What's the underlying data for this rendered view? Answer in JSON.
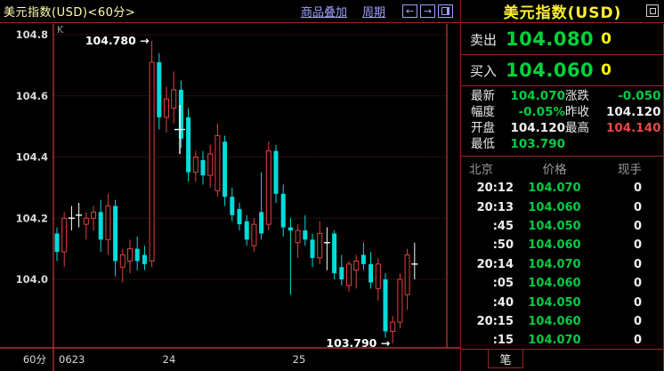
{
  "topbar": {
    "title": "美元指数(USD)<60分>",
    "overlay_label": "商品叠加",
    "period_label": "周期",
    "icons": [
      "left-arrow",
      "right-arrow",
      "split-window"
    ]
  },
  "quote_panel": {
    "title": "美元指数(USD)",
    "sell_label": "卖出",
    "sell_price": "104.080",
    "sell_vol": "0",
    "buy_label": "买入",
    "buy_price": "104.060",
    "buy_vol": "0",
    "stats": [
      {
        "label": "最新",
        "value": "104.070",
        "color": "green"
      },
      {
        "label": "涨跌",
        "value": "-0.050",
        "color": "green"
      },
      {
        "label": "幅度",
        "value": "-0.05%",
        "color": "green"
      },
      {
        "label": "昨收",
        "value": "104.120",
        "color": "white"
      },
      {
        "label": "开盘",
        "value": "104.120",
        "color": "white"
      },
      {
        "label": "最高",
        "value": "104.140",
        "color": "red"
      },
      {
        "label": "最低",
        "value": "103.790",
        "color": "green"
      }
    ],
    "colors": {
      "green": "#00cc41",
      "red": "#e84848",
      "white": "#f0f0f0"
    },
    "table": {
      "headers": [
        "北京",
        "价格",
        "现手"
      ],
      "rows": [
        [
          "20:12",
          "104.070",
          "0"
        ],
        [
          "20:13",
          "104.060",
          "0"
        ],
        [
          ":45",
          "104.050",
          "0"
        ],
        [
          ":50",
          "104.060",
          "0"
        ],
        [
          "20:14",
          "104.070",
          "0"
        ],
        [
          ":05",
          "104.060",
          "0"
        ],
        [
          ":40",
          "104.050",
          "0"
        ],
        [
          "20:15",
          "104.060",
          "0"
        ],
        [
          ":15",
          "104.070",
          "0"
        ]
      ]
    },
    "tab_label": "笔"
  },
  "chart_data": {
    "type": "candlestick",
    "title": "美元指数(USD)<60分>",
    "corner_label": "K",
    "interval_label": "60分",
    "period": "60-minute",
    "y_ticks": [
      104.8,
      104.6,
      104.4,
      104.2,
      104.0
    ],
    "ylim": [
      103.75,
      104.83
    ],
    "x_tick_labels": [
      {
        "label": "0623",
        "x": 66,
        "align": "start"
      },
      {
        "label": "24",
        "x": 190,
        "align": "middle"
      },
      {
        "label": "25",
        "x": 336,
        "align": "middle"
      }
    ],
    "grid": "dotted-horizontal",
    "colors": {
      "up": "#e04040",
      "down": "#00dcdc",
      "doji": "#ffffff",
      "axis": "#b03030",
      "grid": "#7a2424",
      "label": "#d8d8d8"
    },
    "candles": [
      [
        104.15,
        104.17,
        104.06,
        104.09
      ],
      [
        104.09,
        104.22,
        104.04,
        104.2
      ],
      [
        104.2,
        104.24,
        104.16,
        104.2
      ],
      [
        104.21,
        104.25,
        104.17,
        104.21
      ],
      [
        104.18,
        104.22,
        104.13,
        104.2
      ],
      [
        104.2,
        104.24,
        104.16,
        104.22
      ],
      [
        104.22,
        104.26,
        104.09,
        104.13
      ],
      [
        104.13,
        104.28,
        104.08,
        104.24
      ],
      [
        104.24,
        104.26,
        104.01,
        104.06
      ],
      [
        104.04,
        104.1,
        103.99,
        104.08
      ],
      [
        104.06,
        104.13,
        104.02,
        104.1
      ],
      [
        104.1,
        104.14,
        104.03,
        104.06
      ],
      [
        104.08,
        104.11,
        104.03,
        104.05
      ],
      [
        104.06,
        104.78,
        104.04,
        104.71
      ],
      [
        104.71,
        104.74,
        104.49,
        104.53
      ],
      [
        104.53,
        104.63,
        104.48,
        104.59
      ],
      [
        104.56,
        104.68,
        104.51,
        104.62
      ],
      [
        104.62,
        104.65,
        104.43,
        104.46
      ],
      [
        104.53,
        104.56,
        104.32,
        104.35
      ],
      [
        104.35,
        104.42,
        104.32,
        104.4
      ],
      [
        104.39,
        104.42,
        104.31,
        104.34
      ],
      [
        104.34,
        104.44,
        104.3,
        104.41
      ],
      [
        104.29,
        104.51,
        104.27,
        104.47
      ],
      [
        104.45,
        104.47,
        104.24,
        104.27
      ],
      [
        104.27,
        104.3,
        104.19,
        104.21
      ],
      [
        104.23,
        104.25,
        104.16,
        104.18
      ],
      [
        104.19,
        104.21,
        104.11,
        104.13
      ],
      [
        104.11,
        104.2,
        104.09,
        104.18
      ],
      [
        104.22,
        104.35,
        104.13,
        104.15
      ],
      [
        104.18,
        104.45,
        104.16,
        104.42
      ],
      [
        104.42,
        104.44,
        104.25,
        104.28
      ],
      [
        104.28,
        104.31,
        104.14,
        104.17
      ],
      [
        104.17,
        104.2,
        103.95,
        104.16
      ],
      [
        104.12,
        104.18,
        104.07,
        104.16
      ],
      [
        104.16,
        104.21,
        104.11,
        104.13
      ],
      [
        104.13,
        104.15,
        104.04,
        104.07
      ],
      [
        104.07,
        104.19,
        104.05,
        104.15
      ],
      [
        104.12,
        104.17,
        104.03,
        104.12
      ],
      [
        104.15,
        104.16,
        104.0,
        104.02
      ],
      [
        104.04,
        104.08,
        103.98,
        104.0
      ],
      [
        103.98,
        104.06,
        103.96,
        104.05
      ],
      [
        104.03,
        104.08,
        103.97,
        104.06
      ],
      [
        104.08,
        104.12,
        104.03,
        104.05
      ],
      [
        104.05,
        104.09,
        103.97,
        103.99
      ],
      [
        103.97,
        104.07,
        103.93,
        104.05
      ],
      [
        104.0,
        104.02,
        103.81,
        103.83
      ],
      [
        103.83,
        103.88,
        103.79,
        103.86
      ],
      [
        103.86,
        104.02,
        103.84,
        104.0
      ],
      [
        103.95,
        104.1,
        103.9,
        104.08
      ],
      [
        104.05,
        104.12,
        104.0,
        104.05
      ]
    ],
    "annotations": [
      {
        "label": "104.780 →",
        "price": 104.78,
        "candle": 14,
        "side": "high"
      },
      {
        "label": "103.790 →",
        "price": 103.79,
        "candle": 47,
        "side": "low"
      }
    ],
    "crosshair_marker": {
      "x": 202,
      "high": 104.57,
      "low": 104.41,
      "price": 104.49
    }
  }
}
